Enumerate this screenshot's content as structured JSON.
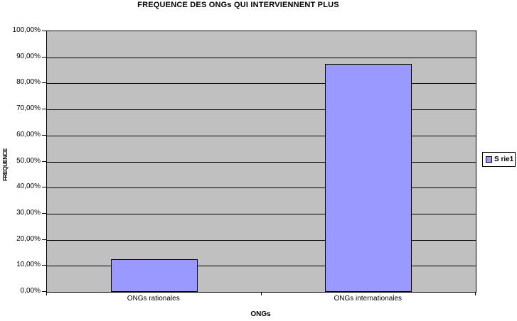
{
  "chart_data": {
    "type": "bar",
    "title": "FREQUENCE DES ONGs QUI INTERVIENNENT PLUS",
    "xlabel": "ONGs",
    "ylabel": "FREQUENCE",
    "categories": [
      "ONGs rationales",
      "ONGs internationales"
    ],
    "series": [
      {
        "name": "S rie1",
        "values": [
          12.5,
          87.5
        ]
      }
    ],
    "ylim": [
      0,
      100
    ],
    "ytick_step": 10,
    "ytick_labels": [
      "0,00%",
      "10,00%",
      "20,00%",
      "30,00%",
      "40,00%",
      "50,00%",
      "60,00%",
      "70,00%",
      "80,00%",
      "90,00%",
      "100,00%"
    ],
    "grid": true,
    "legend_position": "right",
    "colors": {
      "bar_fill": "#9999FF",
      "bar_border": "#000000",
      "plot_bg": "#C0C0C0",
      "gridline": "#000000",
      "background": "#FFFFFF",
      "text": "#000000"
    }
  }
}
